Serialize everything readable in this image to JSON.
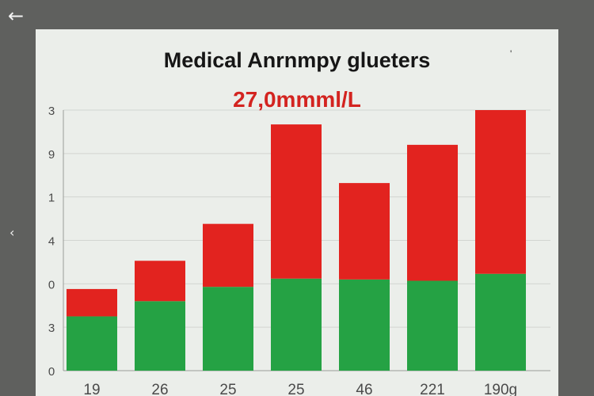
{
  "nav": {
    "back_icon": "arrow-left-icon",
    "side_icon": "chevron-left-icon"
  },
  "corner_mark": "'",
  "chart_data": {
    "type": "bar",
    "stacked": true,
    "title": "Medical Anrnmpy glueters",
    "subtitle": "27,0mmml/L",
    "categories": [
      "19",
      "26",
      "25",
      "25",
      "46",
      "221",
      "190g"
    ],
    "y_tick_labels": [
      "3",
      "9",
      "1",
      "4",
      "0",
      "3",
      "0"
    ],
    "y_tick_positions": [
      6,
      5,
      4,
      3,
      2,
      1,
      0
    ],
    "ylim": [
      0,
      6
    ],
    "grid": true,
    "series": [
      {
        "name": "green",
        "color": "#25a244",
        "values": [
          1.25,
          1.6,
          1.93,
          2.12,
          2.1,
          2.07,
          2.23
        ]
      },
      {
        "name": "red",
        "color": "#e2231f",
        "values": [
          0.63,
          0.93,
          1.45,
          3.55,
          2.22,
          3.13,
          3.77
        ]
      }
    ]
  }
}
